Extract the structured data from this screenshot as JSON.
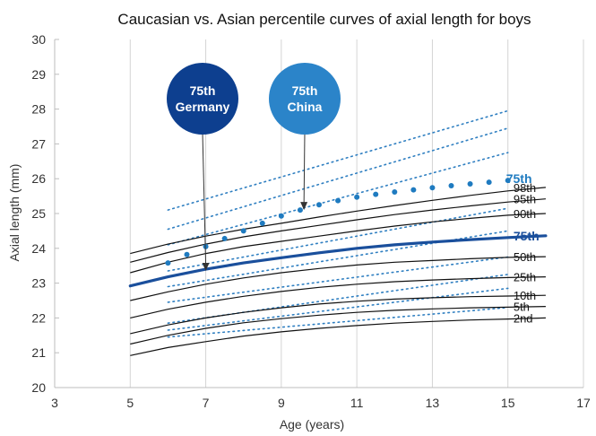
{
  "chart_data": {
    "type": "line",
    "title": "Caucasian vs. Asian percentile curves of axial length for boys",
    "xlabel": "Age (years)",
    "ylabel": "Axial length (mm)",
    "xlim": [
      3,
      17
    ],
    "ylim": [
      20,
      30
    ],
    "xticks": [
      3,
      5,
      7,
      9,
      11,
      13,
      15,
      17
    ],
    "yticks": [
      20,
      21,
      22,
      23,
      24,
      25,
      26,
      27,
      28,
      29,
      30
    ],
    "grid": {
      "vertical": true,
      "horizontal": false
    },
    "colors": {
      "german_highlight": "#1a4f9c",
      "china_highlight": "#1f7bc0",
      "china_dotted": "#2f7fc1",
      "caucasian_curves": "#111111"
    },
    "caucasian_series": [
      {
        "name": "98th",
        "x": [
          5,
          6,
          7,
          8,
          9,
          10,
          11,
          12,
          13,
          14,
          15,
          16
        ],
        "y": [
          23.85,
          24.12,
          24.35,
          24.55,
          24.72,
          24.9,
          25.07,
          25.23,
          25.38,
          25.52,
          25.65,
          25.75
        ]
      },
      {
        "name": "95th",
        "x": [
          5,
          6,
          7,
          8,
          9,
          10,
          11,
          12,
          13,
          14,
          15,
          16
        ],
        "y": [
          23.6,
          23.88,
          24.12,
          24.33,
          24.5,
          24.66,
          24.82,
          24.97,
          25.1,
          25.22,
          25.33,
          25.42
        ]
      },
      {
        "name": "90th",
        "x": [
          5,
          6,
          7,
          8,
          9,
          10,
          11,
          12,
          13,
          14,
          15,
          16
        ],
        "y": [
          23.3,
          23.6,
          23.85,
          24.05,
          24.2,
          24.35,
          24.5,
          24.64,
          24.76,
          24.86,
          24.95,
          25.0
        ]
      },
      {
        "name": "75th",
        "x": [
          5,
          6,
          7,
          8,
          9,
          10,
          11,
          12,
          13,
          14,
          15,
          16
        ],
        "y": [
          22.92,
          23.18,
          23.4,
          23.58,
          23.73,
          23.87,
          24.0,
          24.1,
          24.18,
          24.25,
          24.31,
          24.36
        ]
      },
      {
        "name": "50th",
        "x": [
          5,
          6,
          7,
          8,
          9,
          10,
          11,
          12,
          13,
          14,
          15,
          16
        ],
        "y": [
          22.5,
          22.75,
          22.97,
          23.15,
          23.3,
          23.42,
          23.52,
          23.6,
          23.65,
          23.7,
          23.74,
          23.76
        ]
      },
      {
        "name": "25th",
        "x": [
          5,
          6,
          7,
          8,
          9,
          10,
          11,
          12,
          13,
          14,
          15,
          16
        ],
        "y": [
          22.0,
          22.25,
          22.45,
          22.62,
          22.76,
          22.88,
          22.97,
          23.04,
          23.09,
          23.13,
          23.16,
          23.18
        ]
      },
      {
        "name": "10th",
        "x": [
          5,
          6,
          7,
          8,
          9,
          10,
          11,
          12,
          13,
          14,
          15,
          16
        ],
        "y": [
          21.55,
          21.8,
          22.0,
          22.16,
          22.29,
          22.4,
          22.48,
          22.54,
          22.58,
          22.61,
          22.63,
          22.65
        ]
      },
      {
        "name": "5th",
        "x": [
          5,
          6,
          7,
          8,
          9,
          10,
          11,
          12,
          13,
          14,
          15,
          16
        ],
        "y": [
          21.25,
          21.5,
          21.7,
          21.86,
          21.98,
          22.08,
          22.16,
          22.22,
          22.26,
          22.29,
          22.31,
          22.33
        ]
      },
      {
        "name": "2nd",
        "x": [
          5,
          6,
          7,
          8,
          9,
          10,
          11,
          12,
          13,
          14,
          15,
          16
        ],
        "y": [
          20.92,
          21.15,
          21.32,
          21.48,
          21.6,
          21.7,
          21.78,
          21.85,
          21.9,
          21.94,
          21.97,
          22.0
        ]
      }
    ],
    "asian_dotted_series": [
      {
        "x": [
          6,
          15
        ],
        "y": [
          25.1,
          27.95
        ]
      },
      {
        "x": [
          6,
          15
        ],
        "y": [
          24.55,
          27.45
        ]
      },
      {
        "x": [
          6,
          15
        ],
        "y": [
          24.1,
          26.75
        ]
      },
      {
        "x": [
          6,
          15
        ],
        "y": [
          23.35,
          25.15
        ]
      },
      {
        "x": [
          6,
          15
        ],
        "y": [
          22.9,
          24.5
        ]
      },
      {
        "x": [
          6,
          15
        ],
        "y": [
          22.45,
          23.75
        ]
      },
      {
        "x": [
          6,
          15
        ],
        "y": [
          21.85,
          23.25
        ]
      },
      {
        "x": [
          6,
          15
        ],
        "y": [
          21.65,
          22.85
        ]
      },
      {
        "x": [
          6,
          15
        ],
        "y": [
          21.45,
          22.3
        ]
      }
    ],
    "highlight_germany": {
      "label": "75th",
      "x": [
        5,
        6,
        7,
        8,
        9,
        10,
        11,
        12,
        13,
        14,
        15,
        16
      ],
      "y": [
        22.92,
        23.18,
        23.4,
        23.58,
        23.73,
        23.87,
        24.0,
        24.1,
        24.18,
        24.25,
        24.31,
        24.36
      ]
    },
    "highlight_china": {
      "label": "75th",
      "x": [
        6,
        6.5,
        7,
        7.5,
        8,
        8.5,
        9,
        9.5,
        10,
        10.5,
        11,
        11.5,
        12,
        12.5,
        13,
        13.5,
        14,
        14.5,
        15
      ],
      "y": [
        23.58,
        23.82,
        24.05,
        24.28,
        24.5,
        24.72,
        24.93,
        25.1,
        25.25,
        25.37,
        25.47,
        25.55,
        25.62,
        25.68,
        25.74,
        25.8,
        25.85,
        25.9,
        25.95
      ]
    },
    "annotations": [
      {
        "line1": "75th",
        "line2": "Germany",
        "color": "#0d3f8f",
        "target": [
          7,
          23.35
        ]
      },
      {
        "line1": "75th",
        "line2": "China",
        "color": "#2b84c9",
        "target": [
          9.6,
          25.1
        ]
      }
    ]
  }
}
